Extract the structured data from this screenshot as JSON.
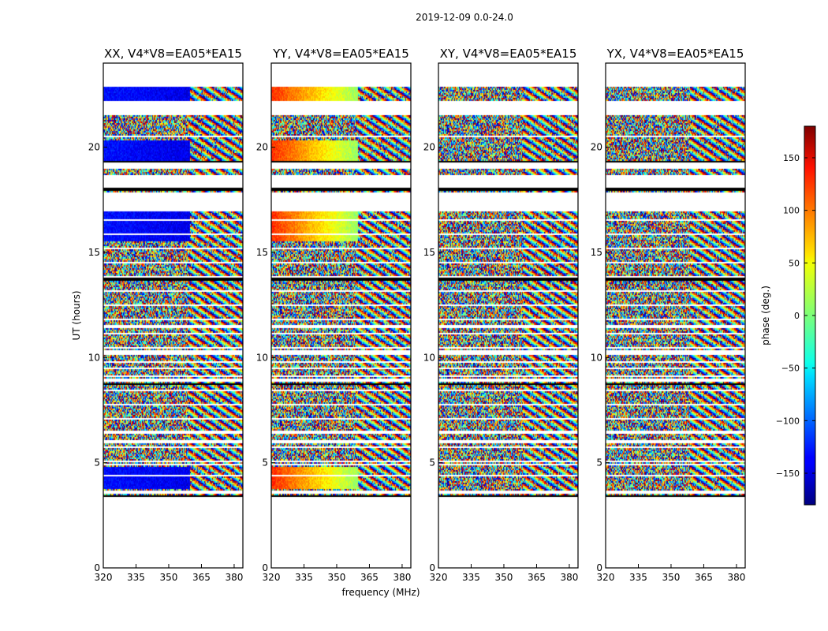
{
  "chart_data": {
    "type": "heatmap",
    "suptitle": "2019-12-09 0.0-24.0",
    "xlabel": "frequency (MHz)",
    "ylabel": "UT (hours)",
    "xlim": [
      320,
      384
    ],
    "ylim": [
      0,
      24
    ],
    "xticks": [
      "320",
      "335",
      "350",
      "365",
      "380"
    ],
    "yticks": [
      "0",
      "5",
      "10",
      "15",
      "20"
    ],
    "panels": [
      {
        "title": "XX, V4*V8=EA05*EA15",
        "coherent_phase": -130,
        "base_phase": -140
      },
      {
        "title": "YY, V4*V8=EA05*EA15",
        "coherent_phase": 60,
        "base_phase": 40
      },
      {
        "title": "XY, V4*V8=EA05*EA15",
        "coherent_phase": null,
        "base_phase": null
      },
      {
        "title": "YX, V4*V8=EA05*EA15",
        "coherent_phase": null,
        "base_phase": null
      }
    ],
    "colorbar": {
      "label": "phase (deg.)",
      "range": [
        -180,
        180
      ],
      "ticks": [
        "150",
        "100",
        "50",
        "0",
        "−50",
        "−100",
        "−150"
      ],
      "colormap": "jet"
    },
    "data_time_range_hours": [
      3.4,
      22.9
    ],
    "blank_intervals_hours": [
      [
        17.9,
        17.0
      ],
      [
        18.7,
        18.1
      ],
      [
        19.3,
        19.0
      ],
      [
        20.6,
        20.5
      ],
      [
        21.9,
        22.2
      ]
    ]
  }
}
